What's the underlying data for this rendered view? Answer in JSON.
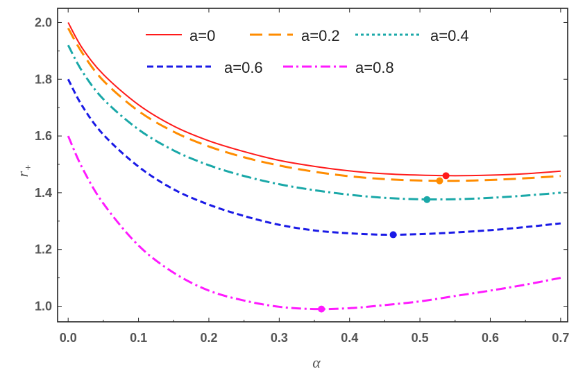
{
  "chart_data": {
    "type": "line",
    "title": "",
    "xlabel": "α",
    "ylabel": "r",
    "ylabel_sub": "+",
    "xlim": [
      -0.015,
      0.71
    ],
    "ylim": [
      0.945,
      2.05
    ],
    "xticks": [
      "0.0",
      "0.1",
      "0.2",
      "0.3",
      "0.4",
      "0.5",
      "0.6",
      "0.7"
    ],
    "xtick_values": [
      0.0,
      0.1,
      0.2,
      0.3,
      0.4,
      0.5,
      0.6,
      0.7
    ],
    "yticks": [
      "1.0",
      "1.2",
      "1.4",
      "1.6",
      "1.8",
      "2.0"
    ],
    "ytick_values": [
      1.0,
      1.2,
      1.4,
      1.6,
      1.8,
      2.0
    ],
    "grid": false,
    "legend_position": "top",
    "series": [
      {
        "name": "a=0",
        "color": "#ff1a1a",
        "dash": "solid",
        "x": [
          0.0,
          0.02,
          0.05,
          0.1,
          0.15,
          0.2,
          0.25,
          0.3,
          0.35,
          0.4,
          0.45,
          0.5,
          0.55,
          0.6,
          0.65,
          0.7
        ],
        "y": [
          2.0,
          1.91,
          1.817,
          1.71,
          1.635,
          1.583,
          1.545,
          1.514,
          1.493,
          1.477,
          1.467,
          1.462,
          1.46,
          1.462,
          1.467,
          1.476
        ],
        "min_point": [
          0.537,
          1.46
        ]
      },
      {
        "name": "a=0.2",
        "color": "#ff8c00",
        "dash": "long-dash",
        "x": [
          0.0,
          0.02,
          0.05,
          0.1,
          0.15,
          0.2,
          0.25,
          0.3,
          0.35,
          0.4,
          0.45,
          0.5,
          0.55,
          0.6,
          0.65,
          0.7
        ],
        "y": [
          1.98,
          1.893,
          1.795,
          1.688,
          1.615,
          1.563,
          1.525,
          1.496,
          1.474,
          1.458,
          1.448,
          1.443,
          1.442,
          1.445,
          1.451,
          1.459
        ],
        "min_point": [
          0.528,
          1.442
        ]
      },
      {
        "name": "a=0.4",
        "color": "#1aa8a8",
        "dash": "dot-dash",
        "x": [
          0.0,
          0.02,
          0.05,
          0.1,
          0.15,
          0.2,
          0.25,
          0.3,
          0.35,
          0.4,
          0.45,
          0.5,
          0.55,
          0.6,
          0.65,
          0.7
        ],
        "y": [
          1.92,
          1.828,
          1.73,
          1.623,
          1.549,
          1.497,
          1.459,
          1.43,
          1.409,
          1.393,
          1.382,
          1.377,
          1.377,
          1.382,
          1.39,
          1.4
        ],
        "min_point": [
          0.51,
          1.376
        ]
      },
      {
        "name": "a=0.6",
        "color": "#1a1ae6",
        "dash": "short-dash",
        "x": [
          0.0,
          0.02,
          0.05,
          0.1,
          0.15,
          0.2,
          0.25,
          0.3,
          0.35,
          0.4,
          0.45,
          0.5,
          0.55,
          0.6,
          0.65,
          0.7
        ],
        "y": [
          1.8,
          1.706,
          1.605,
          1.492,
          1.412,
          1.358,
          1.318,
          1.287,
          1.267,
          1.257,
          1.252,
          1.254,
          1.26,
          1.268,
          1.279,
          1.292
        ],
        "min_point": [
          0.462,
          1.252
        ]
      },
      {
        "name": "a=0.8",
        "color": "#ff1aff",
        "dash": "dot-dash",
        "x": [
          0.0,
          0.02,
          0.05,
          0.1,
          0.15,
          0.2,
          0.25,
          0.3,
          0.35,
          0.4,
          0.45,
          0.5,
          0.55,
          0.6,
          0.65,
          0.7
        ],
        "y": [
          1.6,
          1.488,
          1.362,
          1.214,
          1.118,
          1.055,
          1.02,
          0.998,
          0.99,
          0.993,
          1.004,
          1.017,
          1.036,
          1.055,
          1.076,
          1.1
        ],
        "min_point": [
          0.36,
          0.99
        ]
      }
    ]
  }
}
